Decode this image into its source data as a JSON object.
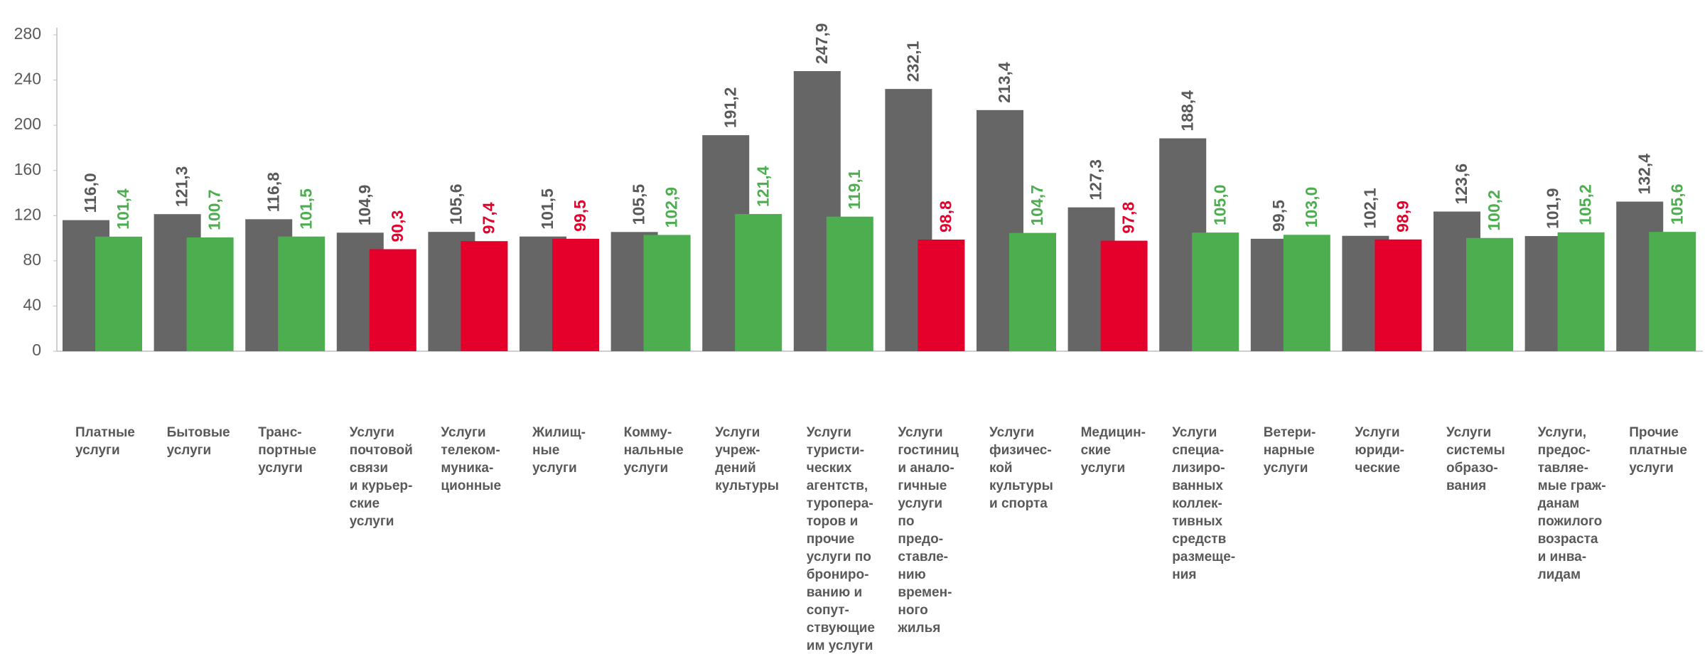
{
  "chart_data": {
    "type": "bar",
    "categories": [
      "Платные\nуслуги",
      "Бытовые\nуслуги",
      "Транс-\nпортные\nуслуги",
      "Услуги\nпочтовой\nсвязи\nи курьер-\nские\nуслуги",
      "Услуги\nтелеком-\nмуника-\nционные",
      "Жилищ-\nные\nуслуги",
      "Комму-\nнальные\nуслуги",
      "Услуги\nучреж-\nдений\nкультуры",
      "Услуги\nтуристи-\nческих\nагентств,\nтуропера-\nторов и\nпрочие\nуслуги по\nброниро-\nванию и\nсопут-\nствующие\nим услуги",
      "Услуги\nгостиниц\nи анало-\nгичные\nуслуги\nпо\nпредо-\nставле-\nнию\nвремен-\nного\nжилья",
      "Услуги\nфизичес-\nкой\nкультуры\nи спорта",
      "Медицин-\nские\nуслуги",
      "Услуги\nспециа-\nлизиро-\nванных\nколлек-\nтивных\nсредств\nразмеще-\nния",
      "Ветери-\nнарные\nуслуги",
      "Услуги\nюриди-\nческие",
      "Услуги\nсистемы\nобразо-\nвания",
      "Услуги,\nпредос-\nтавляе-\nмые граж-\nданам\nпожилого\nвозраста\nи инва-\nлидам",
      "Прочие\nплатные\nуслуги"
    ],
    "series": [
      {
        "color": "#666666",
        "values": [
          116.0,
          121.3,
          116.8,
          104.9,
          105.6,
          101.5,
          105.5,
          191.2,
          247.9,
          232.1,
          213.4,
          127.3,
          188.4,
          99.5,
          102.1,
          123.6,
          101.9,
          132.4
        ],
        "value_labels": [
          "116,0",
          "121,3",
          "116,8",
          "104,9",
          "105,6",
          "101,5",
          "105,5",
          "191,2",
          "247,9",
          "232,1",
          "213,4",
          "127,3",
          "188,4",
          "99,5",
          "102,1",
          "123,6",
          "101,9",
          "132,4"
        ]
      },
      {
        "colors": [
          "#4cae4f",
          "#4cae4f",
          "#4cae4f",
          "#e4002b",
          "#e4002b",
          "#e4002b",
          "#4cae4f",
          "#4cae4f",
          "#4cae4f",
          "#e4002b",
          "#4cae4f",
          "#e4002b",
          "#4cae4f",
          "#4cae4f",
          "#e4002b",
          "#4cae4f",
          "#4cae4f",
          "#4cae4f"
        ],
        "values": [
          101.4,
          100.7,
          101.5,
          90.3,
          97.4,
          99.5,
          102.9,
          121.4,
          119.1,
          98.8,
          104.7,
          97.8,
          105.0,
          103.0,
          98.9,
          100.2,
          105.2,
          105.6
        ],
        "value_labels": [
          "101,4",
          "100,7",
          "101,5",
          "90,3",
          "97,4",
          "99,5",
          "102,9",
          "121,4",
          "119,1",
          "98,8",
          "104,7",
          "97,8",
          "105,0",
          "103,0",
          "98,9",
          "100,2",
          "105,2",
          "105,6"
        ]
      }
    ],
    "ylim": [
      0,
      280
    ],
    "yticks": [
      0,
      40,
      80,
      120,
      160,
      200,
      240,
      280
    ],
    "grid": false
  }
}
